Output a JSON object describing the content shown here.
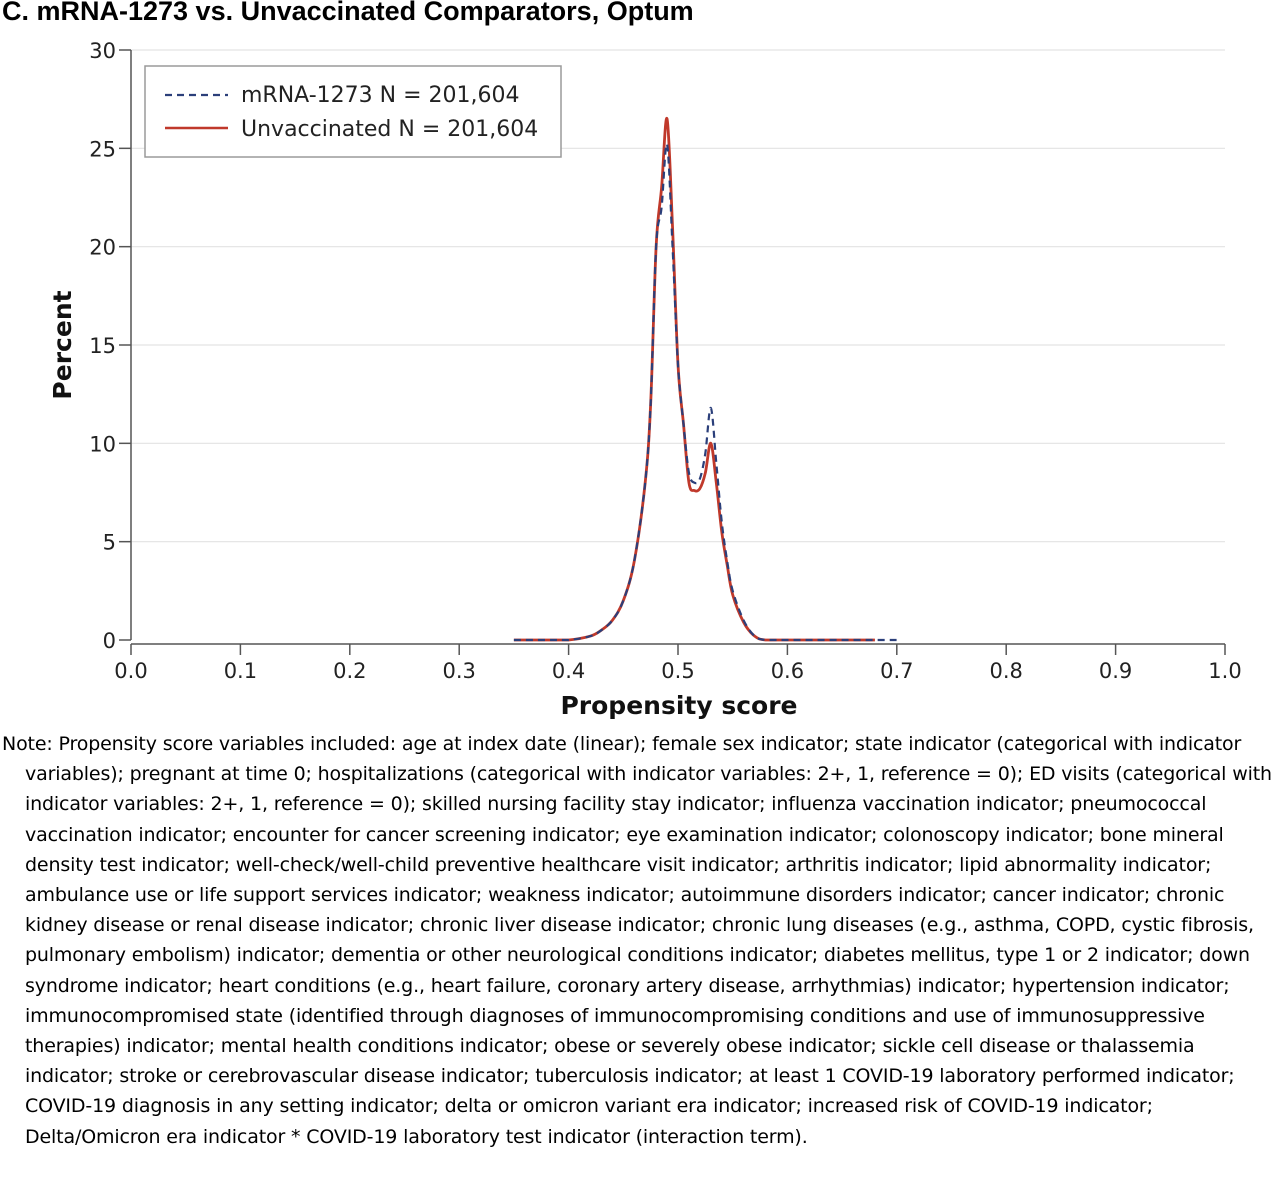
{
  "title": "C. mRNA-1273 vs. Unvaccinated Comparators, Optum",
  "chart_data": {
    "type": "line",
    "xlabel": "Propensity score",
    "ylabel": "Percent",
    "xlim": [
      0.0,
      1.0
    ],
    "ylim": [
      0,
      30
    ],
    "x_ticks": [
      "0.0",
      "0.1",
      "0.2",
      "0.3",
      "0.4",
      "0.5",
      "0.6",
      "0.7",
      "0.8",
      "0.9",
      "1.0"
    ],
    "y_ticks": [
      "0",
      "5",
      "10",
      "15",
      "20",
      "25",
      "30"
    ],
    "grid": "horizontal",
    "legend_position": "top-left",
    "series": [
      {
        "name": "mRNA-1273 N = 201,604",
        "style": "dashed",
        "color": "#2b3f7a",
        "x": [
          0.35,
          0.38,
          0.4,
          0.42,
          0.43,
          0.44,
          0.45,
          0.46,
          0.47,
          0.475,
          0.48,
          0.485,
          0.49,
          0.495,
          0.5,
          0.505,
          0.51,
          0.515,
          0.52,
          0.525,
          0.53,
          0.535,
          0.54,
          0.545,
          0.55,
          0.56,
          0.57,
          0.58,
          0.6,
          0.65,
          0.7
        ],
        "y": [
          0,
          0,
          0,
          0.2,
          0.5,
          1.0,
          2.0,
          4.0,
          8.0,
          12.0,
          20.0,
          22.0,
          25.2,
          20.0,
          14.0,
          11.0,
          8.5,
          8.0,
          8.2,
          9.5,
          11.8,
          9.0,
          6.0,
          4.0,
          2.5,
          1.0,
          0.2,
          0,
          0,
          0,
          0
        ]
      },
      {
        "name": "Unvaccinated N = 201,604",
        "style": "solid",
        "color": "#c0392b",
        "x": [
          0.35,
          0.38,
          0.4,
          0.42,
          0.43,
          0.44,
          0.45,
          0.46,
          0.47,
          0.475,
          0.48,
          0.485,
          0.49,
          0.495,
          0.5,
          0.505,
          0.51,
          0.515,
          0.52,
          0.525,
          0.53,
          0.535,
          0.54,
          0.545,
          0.55,
          0.56,
          0.57,
          0.58,
          0.6,
          0.65,
          0.68
        ],
        "y": [
          0,
          0,
          0,
          0.2,
          0.5,
          1.0,
          2.0,
          4.0,
          8.0,
          12.0,
          20.0,
          23.0,
          26.5,
          21.0,
          14.0,
          11.0,
          8.0,
          7.6,
          7.7,
          8.5,
          10.0,
          8.0,
          5.5,
          3.8,
          2.3,
          0.9,
          0.2,
          0,
          0,
          0,
          0
        ]
      }
    ]
  },
  "note": "Note: Propensity score variables included: age at index date (linear); female sex indicator; state indicator (categorical with indicator variables); pregnant at time 0; hospitalizations (categorical with indicator variables: 2+, 1, reference = 0); ED visits (categorical with indicator variables: 2+, 1, reference = 0); skilled nursing facility stay indicator; influenza vaccination indicator; pneumococcal vaccination indicator; encounter for cancer screening indicator; eye examination indicator; colonoscopy indicator; bone mineral density test indicator; well-check/well-child preventive healthcare visit indicator; arthritis indicator; lipid abnormality indicator; ambulance use or life support services indicator; weakness indicator; autoimmune disorders indicator; cancer indicator; chronic kidney disease or renal disease indicator; chronic liver disease indicator; chronic lung diseases (e.g., asthma, COPD, cystic fibrosis, pulmonary embolism) indicator; dementia or other neurological conditions indicator; diabetes mellitus, type 1 or 2 indicator; down syndrome indicator; heart conditions (e.g., heart failure, coronary artery disease, arrhythmias) indicator; hypertension indicator; immunocompromised state (identified through diagnoses of immunocompromising conditions and use of immunosuppressive therapies) indicator; mental health conditions indicator; obese or severely obese indicator; sickle cell disease or thalassemia indicator; stroke or cerebrovascular disease indicator; tuberculosis indicator; at least 1 COVID-19 laboratory performed indicator; COVID-19 diagnosis in any setting indicator; delta or omicron variant era indicator; increased risk of COVID-19 indicator; Delta/Omicron era indicator * COVID-19 laboratory test indicator (interaction term)."
}
